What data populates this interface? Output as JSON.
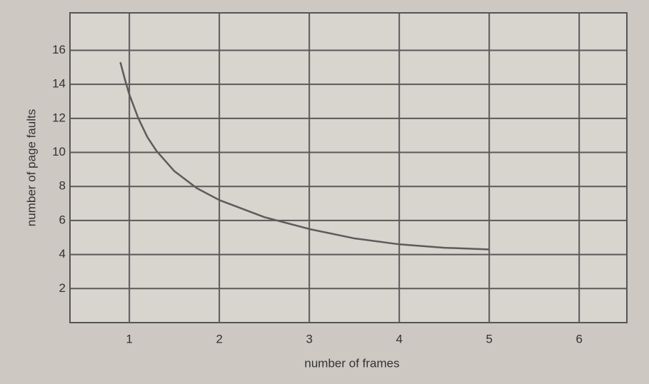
{
  "chart_data": {
    "type": "line",
    "x_label": "number of frames",
    "y_label": "number of page faults",
    "x": [
      0.9,
      0.95,
      1,
      1.1,
      1.2,
      1.3,
      1.5,
      1.75,
      2,
      2.5,
      3,
      3.5,
      4,
      4.5,
      5
    ],
    "values": [
      15.3,
      14.3,
      13.4,
      12,
      10.9,
      10.1,
      8.9,
      7.9,
      7.2,
      6.2,
      5.5,
      4.95,
      4.6,
      4.4,
      4.3
    ],
    "color": "#5c5c5c",
    "xlim": [
      0.34,
      6.53
    ],
    "xticks": [
      1,
      2,
      3,
      4,
      5,
      6
    ],
    "ylim": [
      0,
      18.2
    ],
    "yticks": [
      2,
      4,
      6,
      8,
      10,
      12,
      14,
      16
    ],
    "grid": true
  }
}
